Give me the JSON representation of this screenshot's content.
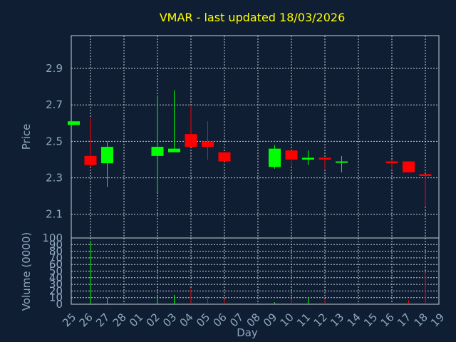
{
  "chart_data": [
    {
      "type": "candlestick",
      "title": "VMAR - last updated 18/03/2026",
      "ylabel": "Price",
      "ylim": [
        1.97,
        3.08
      ],
      "yticks": [
        "2.1",
        "2.3",
        "2.5",
        "2.7",
        "2.9"
      ],
      "grid": true,
      "up_color": "#00ff00",
      "down_color": "#ff0000",
      "candles": [
        {
          "day": "25",
          "open": 2.59,
          "close": 2.61,
          "high": 2.61,
          "low": 2.59
        },
        {
          "day": "26",
          "open": 2.42,
          "close": 2.37,
          "high": 2.63,
          "low": 2.36
        },
        {
          "day": "27",
          "open": 2.38,
          "close": 2.47,
          "high": 2.5,
          "low": 2.25
        },
        {
          "day": "02",
          "open": 2.42,
          "close": 2.47,
          "high": 2.75,
          "low": 2.22
        },
        {
          "day": "03",
          "open": 2.44,
          "close": 2.46,
          "high": 2.78,
          "low": 2.44
        },
        {
          "day": "04",
          "open": 2.54,
          "close": 2.47,
          "high": 2.7,
          "low": 2.47
        },
        {
          "day": "05",
          "open": 2.5,
          "close": 2.47,
          "high": 2.61,
          "low": 2.4
        },
        {
          "day": "06",
          "open": 2.44,
          "close": 2.39,
          "high": 2.44,
          "low": 2.39
        },
        {
          "day": "09",
          "open": 2.36,
          "close": 2.46,
          "high": 2.48,
          "low": 2.35
        },
        {
          "day": "10",
          "open": 2.45,
          "close": 2.4,
          "high": 2.45,
          "low": 2.36
        },
        {
          "day": "11",
          "open": 2.4,
          "close": 2.41,
          "high": 2.45,
          "low": 2.37
        },
        {
          "day": "12",
          "open": 2.41,
          "close": 2.4,
          "high": 2.41,
          "low": 2.35
        },
        {
          "day": "13",
          "open": 2.39,
          "close": 2.39,
          "high": 2.42,
          "low": 2.33
        },
        {
          "day": "16",
          "open": 2.39,
          "close": 2.38,
          "high": 2.4,
          "low": 2.35
        },
        {
          "day": "17",
          "open": 2.39,
          "close": 2.33,
          "high": 2.39,
          "low": 2.33
        },
        {
          "day": "18",
          "open": 2.32,
          "close": 2.31,
          "high": 2.32,
          "low": 2.14
        }
      ]
    },
    {
      "type": "bar",
      "ylabel": "Volume (0000)",
      "xlabel": "Day",
      "ylim": [
        0,
        100
      ],
      "yticks": [
        "0",
        "10",
        "20",
        "30",
        "40",
        "50",
        "60",
        "70",
        "80",
        "90",
        "100"
      ],
      "grid": true,
      "categories": [
        "25",
        "26",
        "27",
        "28",
        "01",
        "02",
        "03",
        "04",
        "05",
        "06",
        "07",
        "08",
        "09",
        "10",
        "11",
        "12",
        "13",
        "14",
        "15",
        "16",
        "17",
        "18",
        "19"
      ],
      "volumes": [
        {
          "day": "25",
          "value": 1,
          "color": "#00ff00"
        },
        {
          "day": "26",
          "value": 95,
          "color": "#00ff00"
        },
        {
          "day": "27",
          "value": 10,
          "color": "#00ff00"
        },
        {
          "day": "02",
          "value": 12,
          "color": "#00ff00"
        },
        {
          "day": "03",
          "value": 14,
          "color": "#00ff00"
        },
        {
          "day": "04",
          "value": 24,
          "color": "#ff0000"
        },
        {
          "day": "05",
          "value": 12,
          "color": "#ff0000"
        },
        {
          "day": "06",
          "value": 8,
          "color": "#ff0000"
        },
        {
          "day": "09",
          "value": 3,
          "color": "#00ff00"
        },
        {
          "day": "10",
          "value": 8,
          "color": "#ff0000"
        },
        {
          "day": "11",
          "value": 10,
          "color": "#00ff00"
        },
        {
          "day": "12",
          "value": 6,
          "color": "#ff0000"
        },
        {
          "day": "13",
          "value": 2,
          "color": "#ff0000"
        },
        {
          "day": "16",
          "value": 2,
          "color": "#ff0000"
        },
        {
          "day": "17",
          "value": 6,
          "color": "#ff0000"
        },
        {
          "day": "18",
          "value": 48,
          "color": "#ff0000"
        }
      ]
    }
  ]
}
